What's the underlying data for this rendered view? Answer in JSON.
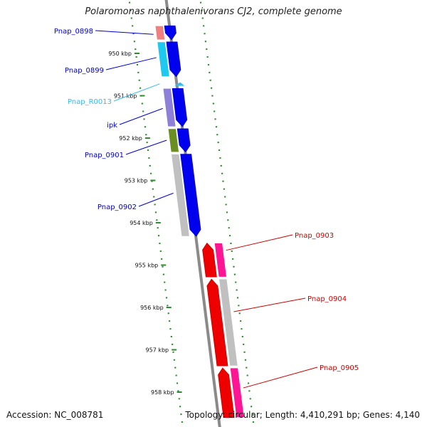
{
  "title": "Polaromonas naphthalenivorans CJ2, complete genome",
  "footer": {
    "accession": "Accession: NC_008781",
    "stats": "Topology: circular; Length: 4,410,291 bp; Genes: 4,140"
  },
  "ticks": [
    {
      "label": "950 kbp",
      "kbp": 950
    },
    {
      "label": "951 kbp",
      "kbp": 951
    },
    {
      "label": "952 kbp",
      "kbp": 952
    },
    {
      "label": "953 kbp",
      "kbp": 953
    },
    {
      "label": "954 kbp",
      "kbp": 954
    },
    {
      "label": "955 kbp",
      "kbp": 955
    },
    {
      "label": "956 kbp",
      "kbp": 956
    },
    {
      "label": "957 kbp",
      "kbp": 957
    },
    {
      "label": "958 kbp",
      "kbp": 958
    }
  ],
  "genes": [
    {
      "name": "Pnap_0898",
      "strand": "+",
      "start_kbp": 949.35,
      "end_kbp": 949.68,
      "color": "#0000cc",
      "fill": "#0000ee",
      "cog_color": "#f08080"
    },
    {
      "name": "Pnap_0899",
      "strand": "+",
      "start_kbp": 949.73,
      "end_kbp": 950.55,
      "color": "#0000cc",
      "fill": "#0000ee",
      "cog_color": "#1ec8ee"
    },
    {
      "name": "Pnap_R0013",
      "strand": "+",
      "start_kbp": 950.7,
      "end_kbp": 950.78,
      "color": "#33bbee",
      "fill": "#33bbee",
      "cog_color": ""
    },
    {
      "name": "ipk",
      "strand": "+",
      "start_kbp": 950.83,
      "end_kbp": 951.73,
      "color": "#0000cc",
      "fill": "#0000ee",
      "cog_color": "#8e7fd8"
    },
    {
      "name": "Pnap_0901",
      "strand": "+",
      "start_kbp": 951.78,
      "end_kbp": 952.33,
      "color": "#0000cc",
      "fill": "#0000ee",
      "cog_color": "#6b8e23"
    },
    {
      "name": "Pnap_0902",
      "strand": "+",
      "start_kbp": 952.38,
      "end_kbp": 954.32,
      "color": "#0000cc",
      "fill": "#0000ee",
      "cog_color": "#c0c0c0"
    },
    {
      "name": "Pnap_0903",
      "strand": "-",
      "start_kbp": 954.48,
      "end_kbp": 955.28,
      "color": "#cc0000",
      "fill": "#ee0000",
      "cog_color": "#ff1493"
    },
    {
      "name": "Pnap_0904",
      "strand": "-",
      "start_kbp": 955.33,
      "end_kbp": 957.38,
      "color": "#cc0000",
      "fill": "#ee0000",
      "cog_color": "#c0c0c0"
    },
    {
      "name": "Pnap_0905",
      "strand": "-",
      "start_kbp": 957.43,
      "end_kbp": 958.6,
      "color": "#cc0000",
      "fill": "#ee0000",
      "cog_color": "#ff1493"
    }
  ]
}
